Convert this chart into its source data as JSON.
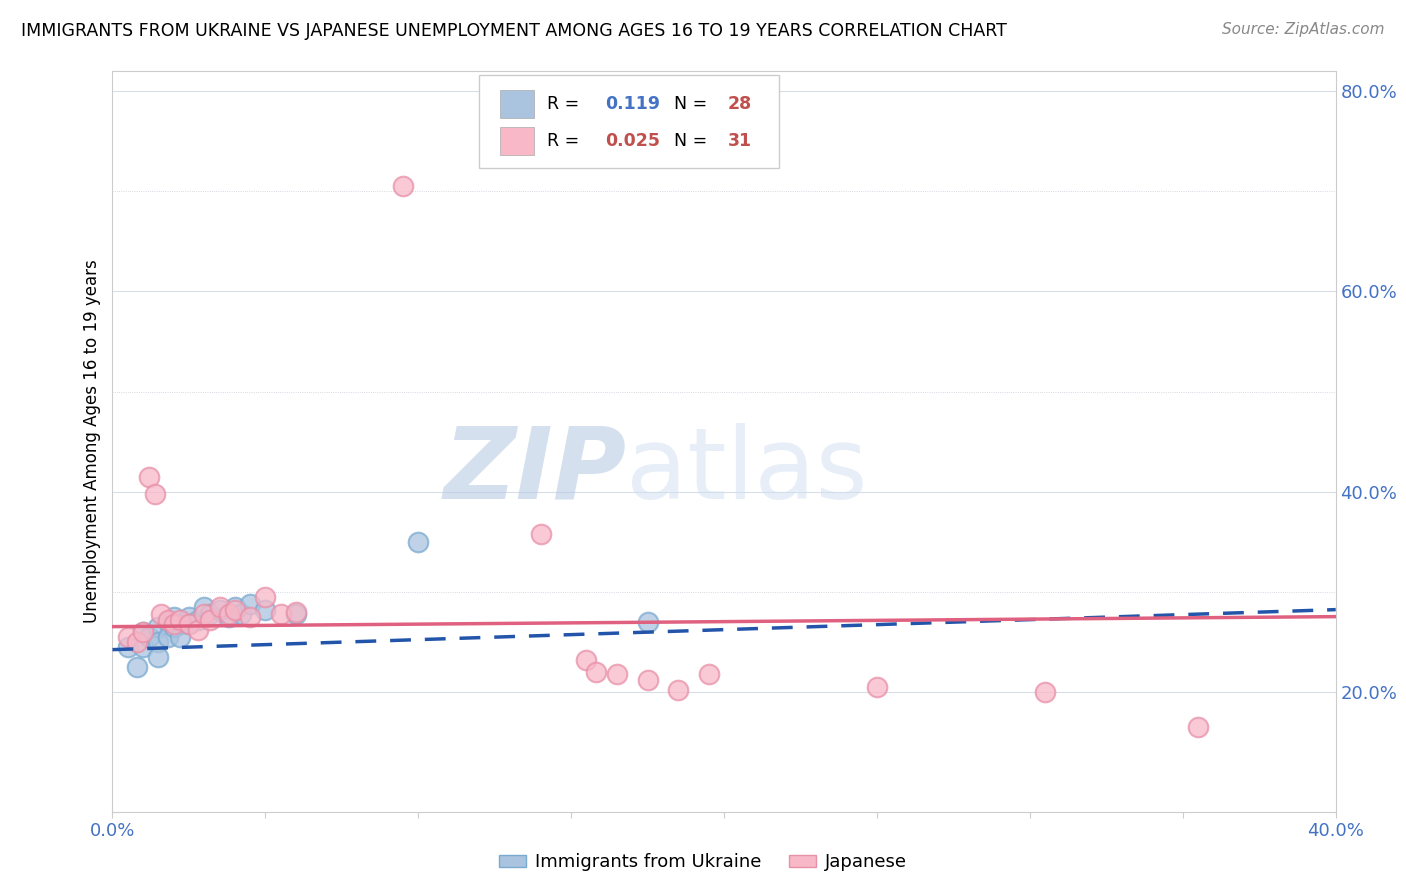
{
  "title": "IMMIGRANTS FROM UKRAINE VS JAPANESE UNEMPLOYMENT AMONG AGES 16 TO 19 YEARS CORRELATION CHART",
  "source": "Source: ZipAtlas.com",
  "ylabel": "Unemployment Among Ages 16 to 19 years",
  "xlim": [
    0.0,
    0.4
  ],
  "ylim": [
    0.08,
    0.82
  ],
  "xticks": [
    0.0,
    0.05,
    0.1,
    0.15,
    0.2,
    0.25,
    0.3,
    0.35,
    0.4
  ],
  "xtick_labels": [
    "0.0%",
    "",
    "",
    "",
    "",
    "",
    "",
    "",
    "40.0%"
  ],
  "right_yticks": [
    0.2,
    0.4,
    0.6,
    0.8
  ],
  "right_ytick_labels": [
    "20.0%",
    "40.0%",
    "60.0%",
    "80.0%"
  ],
  "watermark_zip": "ZIP",
  "watermark_atlas": "atlas",
  "ukraine_color": "#aac4e0",
  "ukraine_edge_color": "#7aaad0",
  "japan_color": "#f8b8c8",
  "japan_edge_color": "#e890a8",
  "ukraine_line_color": "#2255aa",
  "ukraine_line_style": "--",
  "japan_line_color": "#e06080",
  "japan_line_style": "-",
  "ukraine_dots": [
    [
      0.005,
      0.245
    ],
    [
      0.008,
      0.225
    ],
    [
      0.01,
      0.26
    ],
    [
      0.01,
      0.245
    ],
    [
      0.012,
      0.255
    ],
    [
      0.015,
      0.265
    ],
    [
      0.015,
      0.25
    ],
    [
      0.015,
      0.235
    ],
    [
      0.018,
      0.27
    ],
    [
      0.018,
      0.255
    ],
    [
      0.02,
      0.275
    ],
    [
      0.02,
      0.265
    ],
    [
      0.022,
      0.268
    ],
    [
      0.022,
      0.255
    ],
    [
      0.025,
      0.275
    ],
    [
      0.025,
      0.268
    ],
    [
      0.028,
      0.272
    ],
    [
      0.03,
      0.285
    ],
    [
      0.032,
      0.278
    ],
    [
      0.035,
      0.282
    ],
    [
      0.038,
      0.275
    ],
    [
      0.04,
      0.285
    ],
    [
      0.042,
      0.278
    ],
    [
      0.045,
      0.288
    ],
    [
      0.05,
      0.282
    ],
    [
      0.06,
      0.278
    ],
    [
      0.1,
      0.35
    ],
    [
      0.175,
      0.27
    ]
  ],
  "japan_dots": [
    [
      0.005,
      0.255
    ],
    [
      0.008,
      0.25
    ],
    [
      0.01,
      0.26
    ],
    [
      0.012,
      0.415
    ],
    [
      0.014,
      0.398
    ],
    [
      0.016,
      0.278
    ],
    [
      0.018,
      0.272
    ],
    [
      0.02,
      0.268
    ],
    [
      0.022,
      0.272
    ],
    [
      0.025,
      0.268
    ],
    [
      0.028,
      0.262
    ],
    [
      0.03,
      0.278
    ],
    [
      0.032,
      0.272
    ],
    [
      0.035,
      0.285
    ],
    [
      0.038,
      0.278
    ],
    [
      0.04,
      0.282
    ],
    [
      0.045,
      0.275
    ],
    [
      0.05,
      0.295
    ],
    [
      0.055,
      0.278
    ],
    [
      0.06,
      0.28
    ],
    [
      0.095,
      0.705
    ],
    [
      0.14,
      0.358
    ],
    [
      0.155,
      0.232
    ],
    [
      0.158,
      0.22
    ],
    [
      0.165,
      0.218
    ],
    [
      0.175,
      0.212
    ],
    [
      0.185,
      0.202
    ],
    [
      0.195,
      0.218
    ],
    [
      0.25,
      0.205
    ],
    [
      0.305,
      0.2
    ],
    [
      0.355,
      0.165
    ]
  ],
  "ukraine_trend_x": [
    0.0,
    0.4
  ],
  "ukraine_trend_y": [
    0.242,
    0.282
  ],
  "japan_trend_x": [
    0.0,
    0.4
  ],
  "japan_trend_y": [
    0.265,
    0.275
  ],
  "legend_box_ukraine_r": "0.119",
  "legend_box_ukraine_n": "28",
  "legend_box_japan_r": "0.025",
  "legend_box_japan_n": "31",
  "bottom_legend_ukraine": "Immigrants from Ukraine",
  "bottom_legend_japan": "Japanese",
  "grid_color": "#d8dde8",
  "grid_dotted_color": "#c8ccd8"
}
